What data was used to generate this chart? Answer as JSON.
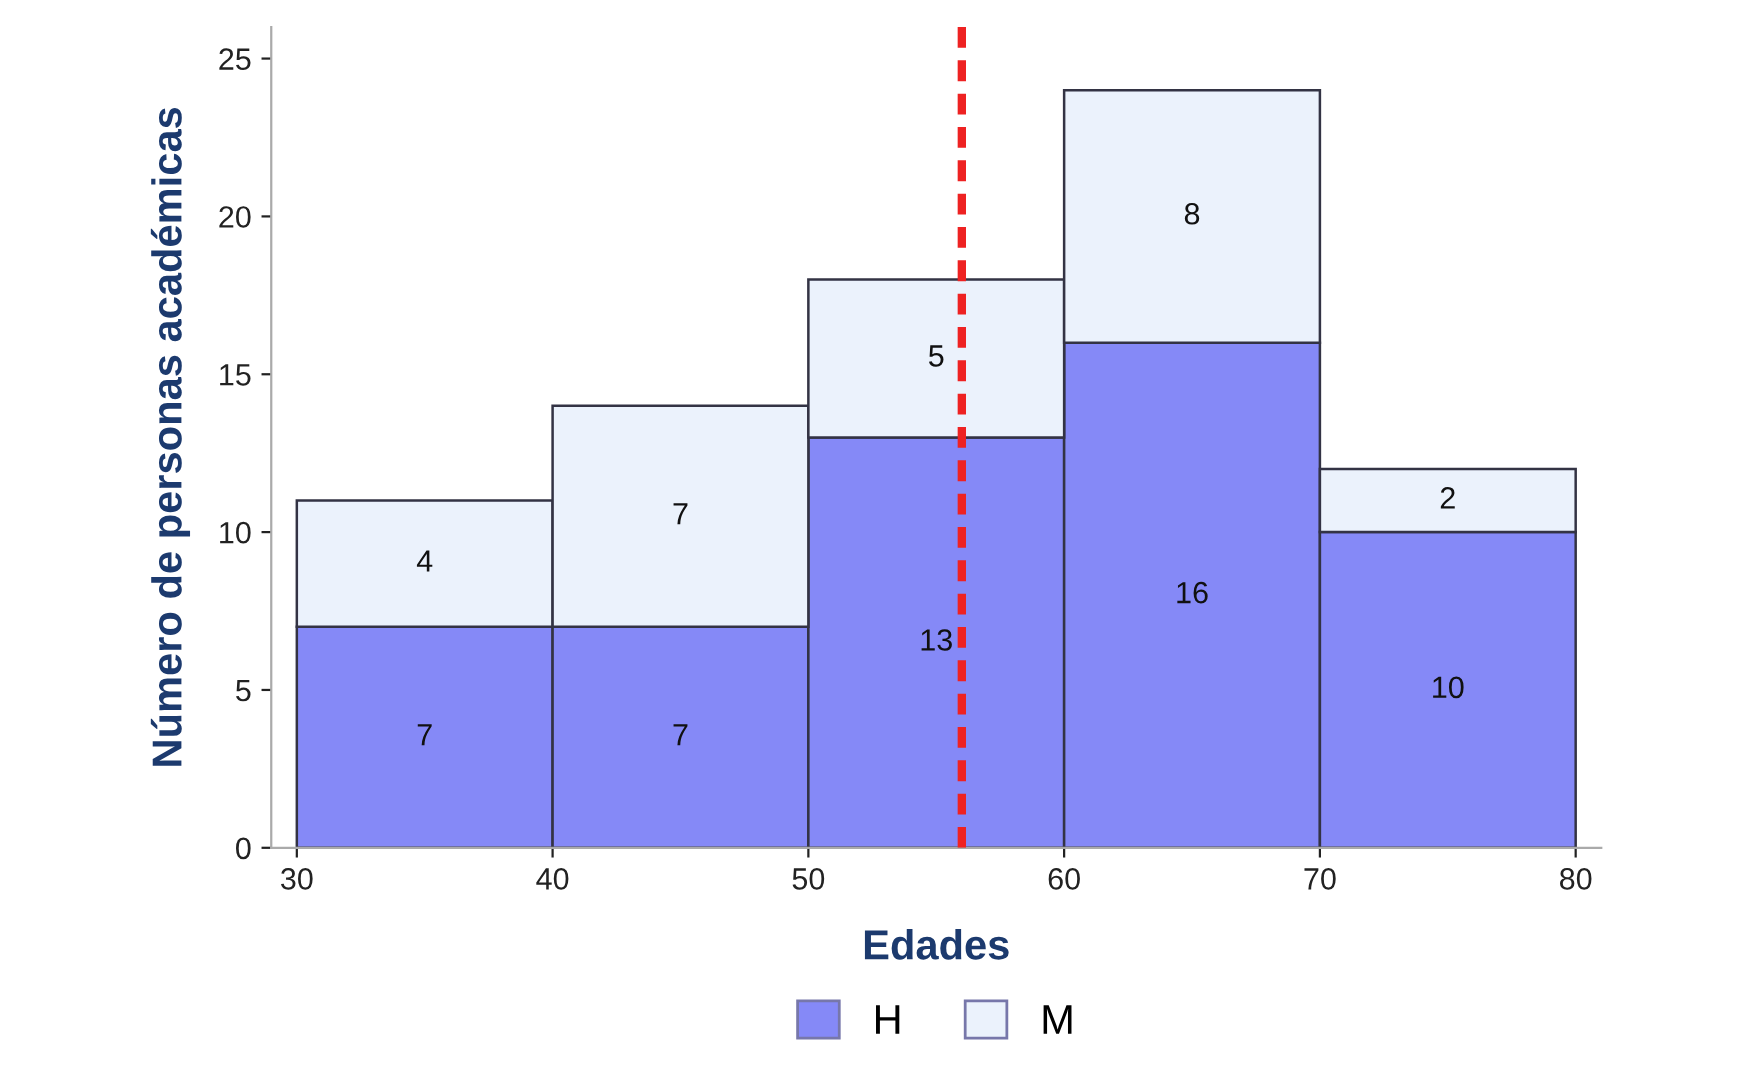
{
  "chart_data": {
    "type": "bar",
    "stacked": true,
    "x": [
      35,
      45,
      55,
      65,
      75
    ],
    "series": [
      {
        "name": "H",
        "color": "#8589f7",
        "values": [
          7,
          7,
          13,
          16,
          10
        ]
      },
      {
        "name": "M",
        "color": "#ebf2fc",
        "values": [
          4,
          7,
          5,
          8,
          2
        ]
      }
    ],
    "xlabel": "Edades",
    "ylabel": "Número de personas académicas",
    "xlim": [
      29,
      81
    ],
    "ylim": [
      0,
      26
    ],
    "xticks": [
      30,
      40,
      50,
      60,
      70,
      80
    ],
    "yticks": [
      0,
      5,
      10,
      15,
      20,
      25
    ],
    "ref_lines": [
      {
        "axis": "x",
        "value": 56,
        "color": "#ee2222",
        "line_style": "dashed"
      }
    ],
    "data_labels": true,
    "grid": false,
    "legend": "bottom"
  }
}
